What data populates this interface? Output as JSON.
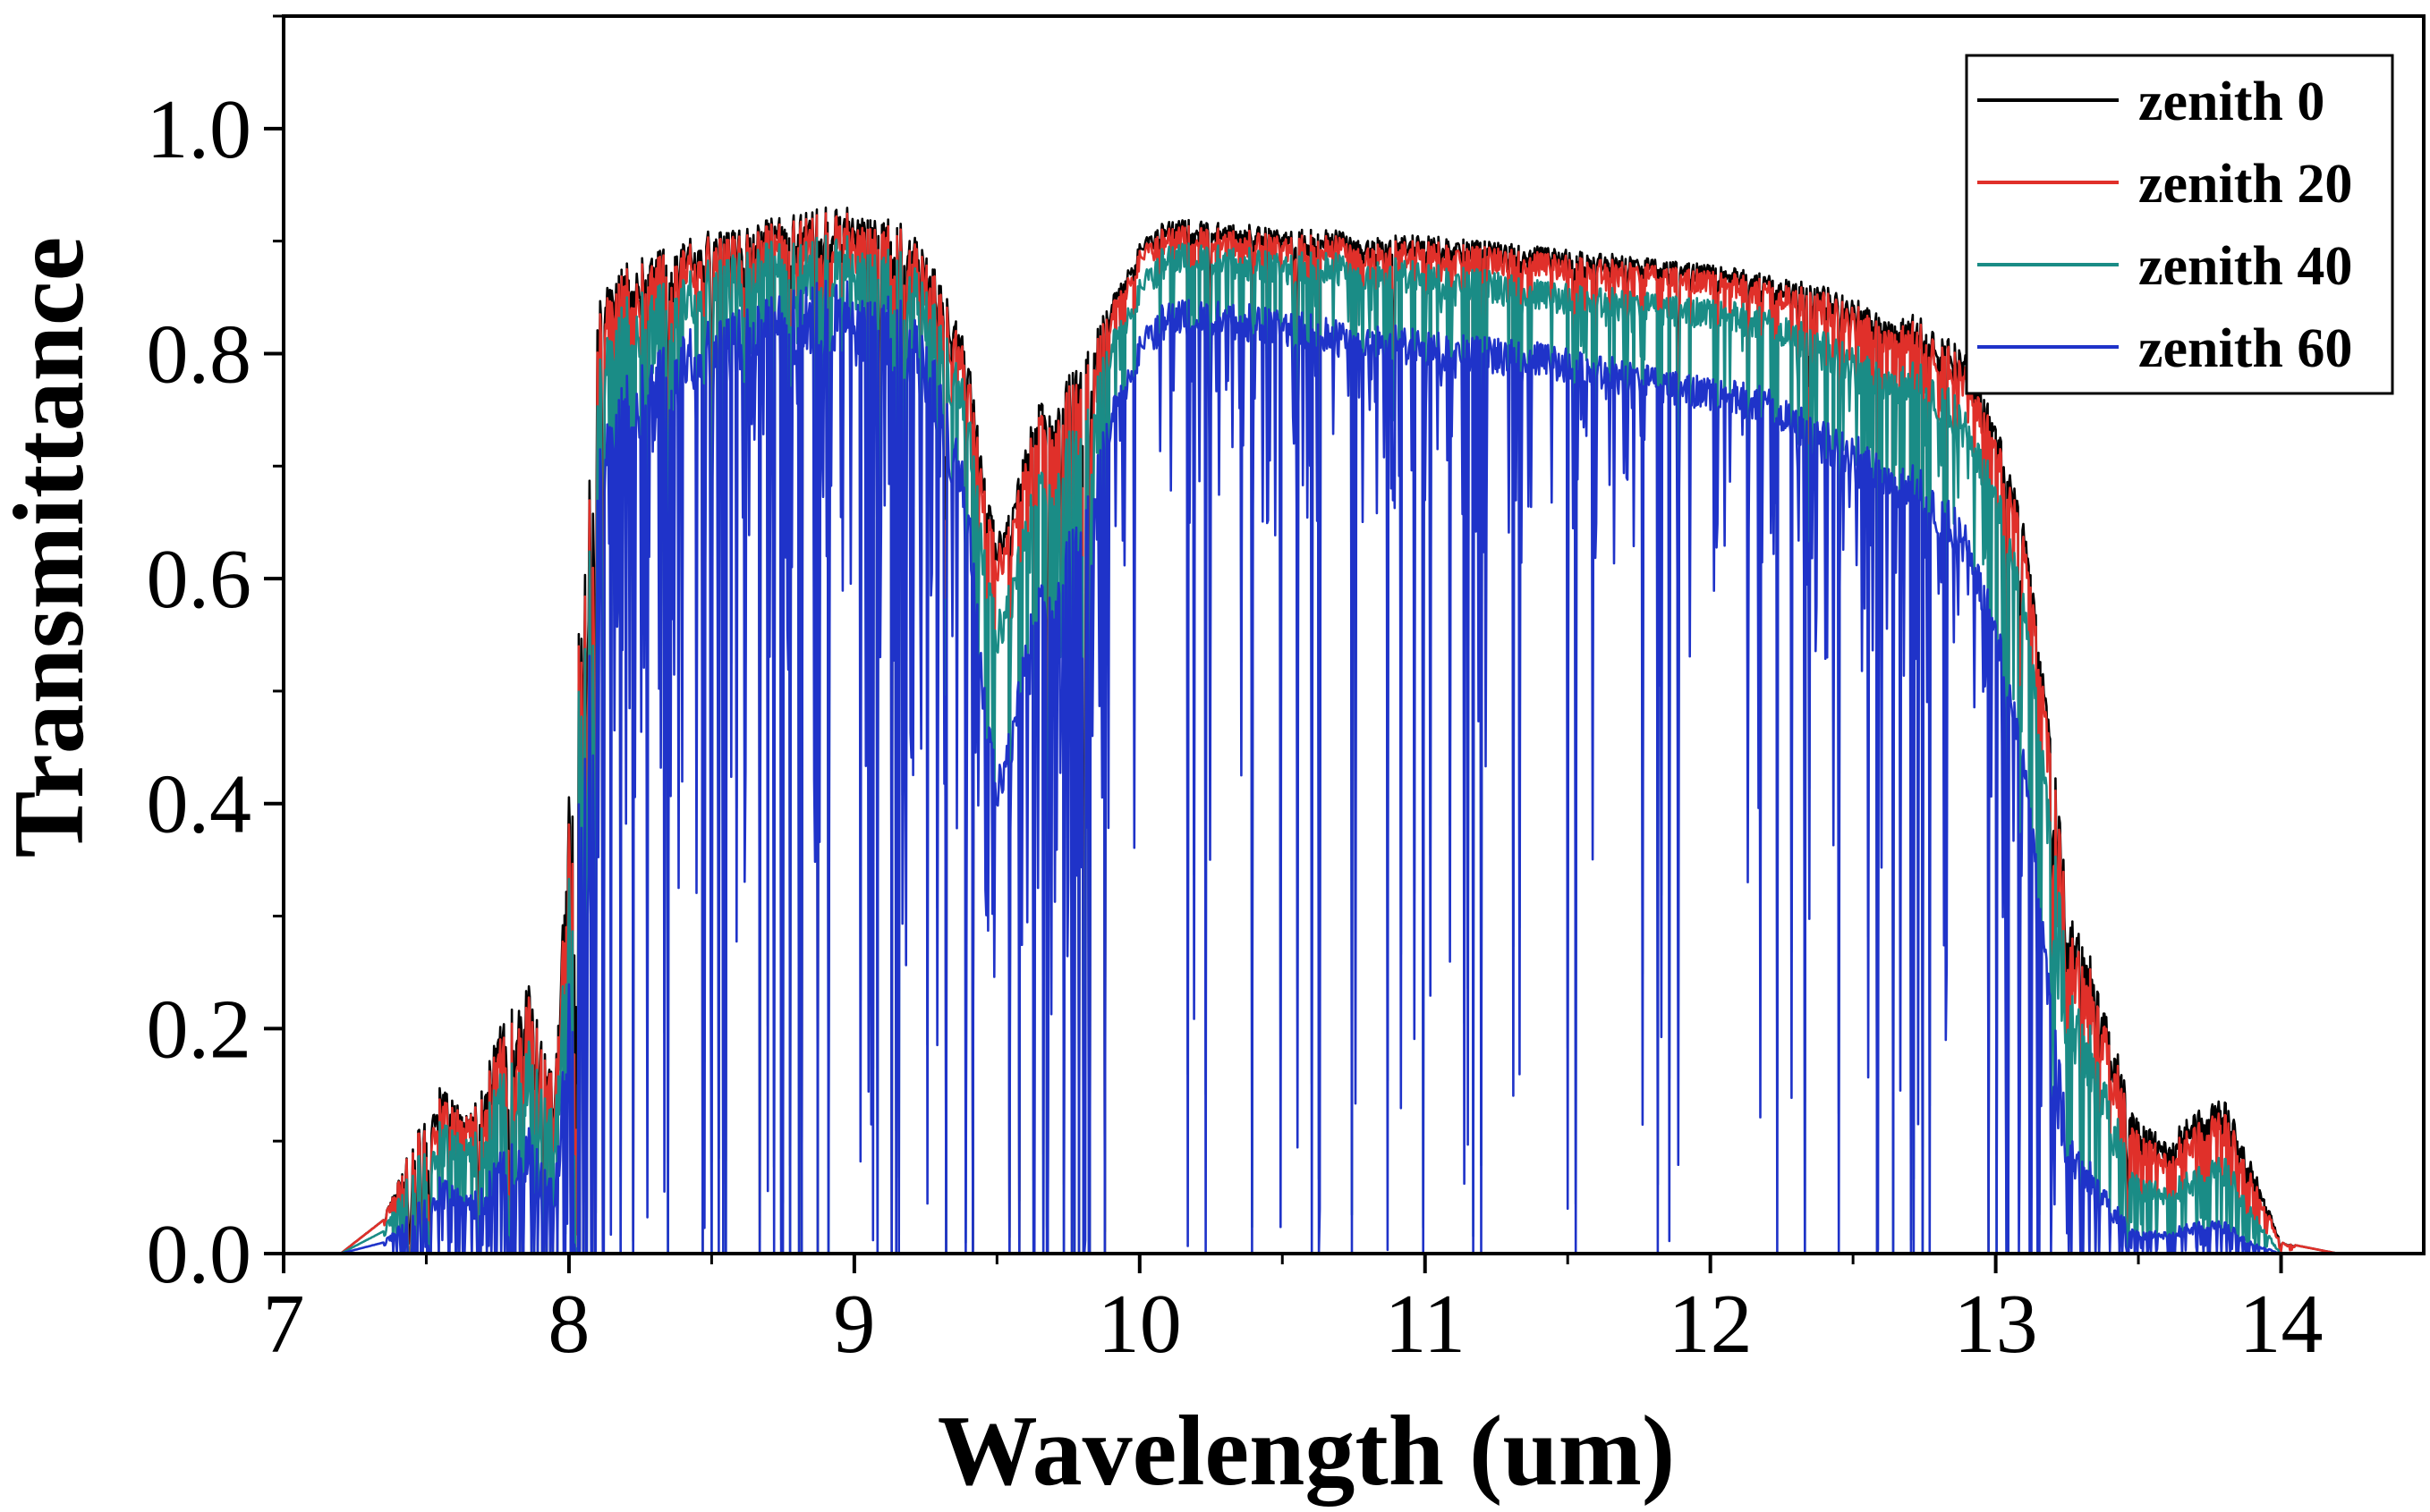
{
  "chart_data": {
    "type": "line",
    "title": "",
    "xlabel": "Wavelength (um)",
    "ylabel": "Transmittance",
    "xlim": [
      7,
      14.5
    ],
    "ylim": [
      0,
      1.1
    ],
    "xticks": [
      7,
      8,
      9,
      10,
      11,
      12,
      13,
      14
    ],
    "xtick_labels": [
      "7",
      "8",
      "9",
      "10",
      "11",
      "12",
      "13",
      "14"
    ],
    "yticks": [
      0,
      0.2,
      0.4,
      0.6,
      0.8,
      1.0
    ],
    "ytick_labels": [
      "0.0",
      "0.2",
      "0.4",
      "0.6",
      "0.8",
      "1.0"
    ],
    "grid": false,
    "legend_position": "top-right",
    "x": [
      7.0,
      7.2,
      7.35,
      7.45,
      7.55,
      7.65,
      7.75,
      7.85,
      7.95,
      8.0,
      8.05,
      8.1,
      8.2,
      8.3,
      8.4,
      8.5,
      8.6,
      8.7,
      8.8,
      8.9,
      9.0,
      9.1,
      9.2,
      9.3,
      9.4,
      9.45,
      9.5,
      9.55,
      9.6,
      9.65,
      9.7,
      9.75,
      9.8,
      9.9,
      10.0,
      10.1,
      10.2,
      10.3,
      10.4,
      10.5,
      10.6,
      10.7,
      10.8,
      10.9,
      11.0,
      11.2,
      11.4,
      11.6,
      11.8,
      12.0,
      12.2,
      12.4,
      12.6,
      12.65,
      12.7,
      12.8,
      12.9,
      13.0,
      13.1,
      13.2,
      13.25,
      13.3,
      13.4,
      13.5,
      13.6,
      13.7,
      13.8,
      13.9,
      14.0,
      14.2,
      14.5
    ],
    "series": [
      {
        "name": "zenith 0",
        "color": "#000000",
        "values": [
          0.0,
          0.0,
          0.03,
          0.1,
          0.15,
          0.12,
          0.2,
          0.25,
          0.15,
          0.45,
          0.6,
          0.85,
          0.88,
          0.89,
          0.9,
          0.91,
          0.91,
          0.92,
          0.925,
          0.93,
          0.93,
          0.925,
          0.91,
          0.87,
          0.8,
          0.7,
          0.64,
          0.66,
          0.72,
          0.76,
          0.74,
          0.78,
          0.8,
          0.85,
          0.9,
          0.92,
          0.92,
          0.915,
          0.915,
          0.91,
          0.91,
          0.91,
          0.905,
          0.905,
          0.905,
          0.9,
          0.895,
          0.89,
          0.885,
          0.88,
          0.87,
          0.86,
          0.84,
          0.83,
          0.84,
          0.82,
          0.8,
          0.74,
          0.65,
          0.45,
          0.32,
          0.3,
          0.2,
          0.12,
          0.1,
          0.13,
          0.14,
          0.08,
          0.01,
          0.0,
          0.0
        ]
      },
      {
        "name": "zenith 20",
        "color": "#e0302a",
        "values": [
          0.0,
          0.0,
          0.03,
          0.1,
          0.14,
          0.12,
          0.19,
          0.24,
          0.15,
          0.44,
          0.59,
          0.84,
          0.875,
          0.885,
          0.895,
          0.905,
          0.905,
          0.915,
          0.92,
          0.925,
          0.925,
          0.92,
          0.905,
          0.865,
          0.79,
          0.69,
          0.63,
          0.65,
          0.71,
          0.75,
          0.73,
          0.77,
          0.79,
          0.845,
          0.895,
          0.915,
          0.915,
          0.91,
          0.91,
          0.905,
          0.905,
          0.905,
          0.9,
          0.9,
          0.9,
          0.895,
          0.89,
          0.885,
          0.88,
          0.875,
          0.865,
          0.855,
          0.835,
          0.825,
          0.835,
          0.815,
          0.79,
          0.73,
          0.64,
          0.44,
          0.31,
          0.29,
          0.19,
          0.11,
          0.09,
          0.12,
          0.13,
          0.07,
          0.01,
          0.0,
          0.0
        ]
      },
      {
        "name": "zenith 40",
        "color": "#1a8c86",
        "values": [
          0.0,
          0.0,
          0.02,
          0.08,
          0.12,
          0.1,
          0.16,
          0.2,
          0.12,
          0.4,
          0.55,
          0.8,
          0.85,
          0.86,
          0.87,
          0.885,
          0.89,
          0.9,
          0.9,
          0.905,
          0.905,
          0.9,
          0.885,
          0.84,
          0.76,
          0.64,
          0.57,
          0.6,
          0.66,
          0.7,
          0.68,
          0.73,
          0.75,
          0.82,
          0.87,
          0.9,
          0.9,
          0.895,
          0.895,
          0.89,
          0.89,
          0.89,
          0.885,
          0.885,
          0.88,
          0.875,
          0.865,
          0.86,
          0.855,
          0.85,
          0.84,
          0.82,
          0.8,
          0.79,
          0.8,
          0.78,
          0.75,
          0.69,
          0.59,
          0.38,
          0.26,
          0.24,
          0.14,
          0.07,
          0.06,
          0.08,
          0.09,
          0.04,
          0.0,
          0.0,
          0.0
        ]
      },
      {
        "name": "zenith 60",
        "color": "#1f33c9",
        "values": [
          0.0,
          0.0,
          0.01,
          0.04,
          0.07,
          0.05,
          0.09,
          0.12,
          0.06,
          0.3,
          0.45,
          0.72,
          0.78,
          0.8,
          0.82,
          0.83,
          0.84,
          0.85,
          0.86,
          0.865,
          0.865,
          0.86,
          0.84,
          0.79,
          0.68,
          0.52,
          0.43,
          0.47,
          0.55,
          0.6,
          0.58,
          0.64,
          0.67,
          0.76,
          0.82,
          0.85,
          0.85,
          0.845,
          0.845,
          0.84,
          0.835,
          0.83,
          0.83,
          0.825,
          0.82,
          0.815,
          0.81,
          0.8,
          0.79,
          0.78,
          0.77,
          0.74,
          0.72,
          0.7,
          0.71,
          0.68,
          0.65,
          0.57,
          0.45,
          0.22,
          0.12,
          0.1,
          0.05,
          0.02,
          0.02,
          0.03,
          0.03,
          0.01,
          0.0,
          0.0,
          0.0
        ]
      }
    ]
  }
}
